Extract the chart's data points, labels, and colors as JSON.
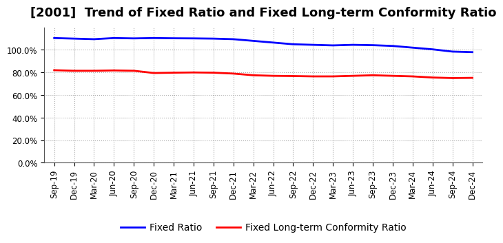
{
  "title": "[2001]  Trend of Fixed Ratio and Fixed Long-term Conformity Ratio",
  "x_labels": [
    "Sep-19",
    "Dec-19",
    "Mar-20",
    "Jun-20",
    "Sep-20",
    "Dec-20",
    "Mar-21",
    "Jun-21",
    "Sep-21",
    "Dec-21",
    "Mar-22",
    "Jun-22",
    "Sep-22",
    "Dec-22",
    "Mar-23",
    "Jun-23",
    "Sep-23",
    "Dec-23",
    "Mar-24",
    "Jun-24",
    "Sep-24",
    "Dec-24"
  ],
  "fixed_ratio": [
    110.5,
    110.0,
    109.5,
    110.5,
    110.2,
    110.5,
    110.3,
    110.2,
    110.0,
    109.5,
    108.0,
    106.5,
    105.0,
    104.5,
    104.0,
    104.5,
    104.2,
    103.5,
    102.0,
    100.5,
    98.5,
    98.0
  ],
  "fixed_lt_ratio": [
    82.0,
    81.5,
    81.5,
    81.8,
    81.5,
    79.5,
    79.8,
    80.0,
    79.8,
    79.0,
    77.5,
    77.0,
    76.8,
    76.5,
    76.5,
    77.0,
    77.5,
    77.0,
    76.5,
    75.5,
    75.0,
    75.2
  ],
  "ylim": [
    0,
    120
  ],
  "yticks": [
    0,
    20,
    40,
    60,
    80,
    100
  ],
  "ytick_labels": [
    "0.0%",
    "20.0%",
    "40.0%",
    "60.0%",
    "80.0%",
    "100.0%"
  ],
  "line_color_blue": "#0000FF",
  "line_color_red": "#FF0000",
  "background_color": "#FFFFFF",
  "grid_color": "#AAAAAA",
  "legend_fixed_ratio": "Fixed Ratio",
  "legend_fixed_lt_ratio": "Fixed Long-term Conformity Ratio",
  "title_fontsize": 13,
  "tick_fontsize": 8.5,
  "legend_fontsize": 10,
  "line_width": 2.0
}
